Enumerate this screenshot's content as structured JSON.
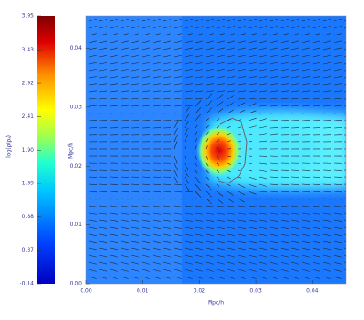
{
  "chart_data": {
    "type": "density-map",
    "colorbar_label": "log(ρ/ρₐ)",
    "colorbar_ticks": [
      3.95,
      3.43,
      2.92,
      2.41,
      {
        "value": 1.9,
        "label": "1.90"
      },
      1.39,
      0.88,
      0.37,
      -0.14
    ],
    "colorbar_lim": [
      -0.14,
      3.95
    ],
    "x_label": "Mpc/h",
    "y_label": "Mpc/h",
    "xlim": [
      0,
      0.046
    ],
    "ylim": [
      0,
      0.0455
    ],
    "xticks": [
      {
        "value": 0,
        "label": "0.00"
      },
      0.01,
      0.02,
      0.03,
      0.04
    ],
    "yticks": [
      {
        "value": 0,
        "label": "0.00"
      },
      0.01,
      0.02,
      0.03,
      0.04
    ]
  }
}
